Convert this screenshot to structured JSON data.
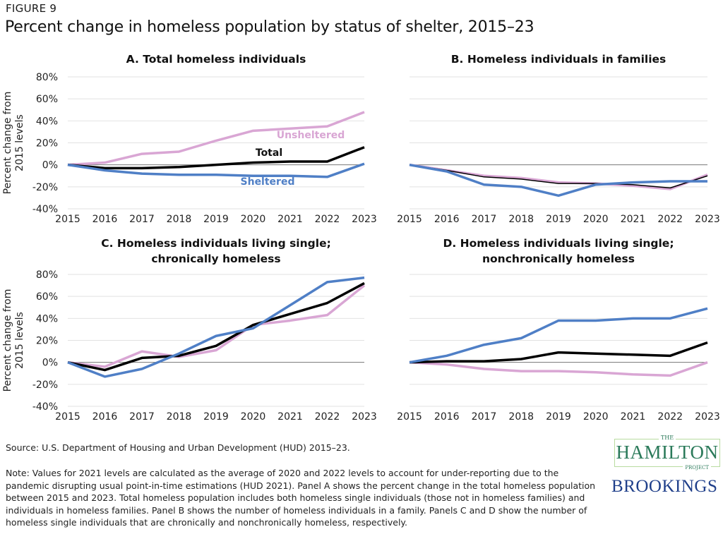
{
  "figure_label": "FIGURE 9",
  "title": "Percent change in homeless population by status of shelter, 2015–23",
  "colors": {
    "Total": "#000000",
    "Sheltered": "#4f7fc6",
    "Unsheltered": "#d9a6d4"
  },
  "chart_data": [
    {
      "type": "line",
      "title": "A. Total homeless individuals",
      "ylabel": "Percent change from 2015 levels",
      "x": [
        "2015",
        "2016",
        "2017",
        "2018",
        "2019",
        "2020",
        "2021",
        "2022",
        "2023"
      ],
      "yticks": [
        "80%",
        "60%",
        "40%",
        "20%",
        "0%",
        "-20%",
        "-40%"
      ],
      "ylim": [
        -40,
        80
      ],
      "series": [
        {
          "name": "Unsheltered",
          "values": [
            0,
            2,
            10,
            12,
            22,
            31,
            33,
            35,
            48
          ]
        },
        {
          "name": "Total",
          "values": [
            0,
            -3,
            -3,
            -2,
            0,
            2,
            3,
            3,
            16
          ]
        },
        {
          "name": "Sheltered",
          "values": [
            0,
            -5,
            -8,
            -9,
            -9,
            -10,
            -10,
            -11,
            1
          ]
        }
      ]
    },
    {
      "type": "line",
      "title": "B. Homeless individuals in families",
      "x": [
        "2015",
        "2016",
        "2017",
        "2018",
        "2019",
        "2020",
        "2021",
        "2022",
        "2023"
      ],
      "ylim": [
        -40,
        80
      ],
      "series": [
        {
          "key": "Unsheltered",
          "values": [
            0,
            -5,
            -10,
            -12,
            -16,
            -17,
            -19,
            -22,
            -9
          ]
        },
        {
          "key": "Total",
          "values": [
            0,
            -5,
            -11,
            -13,
            -17,
            -17,
            -18,
            -21,
            -10
          ]
        },
        {
          "key": "Sheltered",
          "values": [
            0,
            -6,
            -18,
            -20,
            -28,
            -18,
            -16,
            -15,
            -15
          ]
        }
      ]
    },
    {
      "type": "line",
      "title": "C. Homeless individuals living single; chronically homeless",
      "ylabel": "Percent change from 2015 levels",
      "x": [
        "2015",
        "2016",
        "2017",
        "2018",
        "2019",
        "2020",
        "2021",
        "2022",
        "2023"
      ],
      "yticks": [
        "80%",
        "60%",
        "40%",
        "20%",
        "0%",
        "-20%",
        "-40%"
      ],
      "ylim": [
        -40,
        80
      ],
      "series": [
        {
          "key": "Unsheltered",
          "values": [
            0,
            -4,
            10,
            5,
            11,
            34,
            38,
            43,
            70
          ]
        },
        {
          "key": "Total",
          "values": [
            0,
            -7,
            4,
            6,
            15,
            34,
            44,
            54,
            72
          ]
        },
        {
          "key": "Sheltered",
          "values": [
            0,
            -13,
            -6,
            8,
            24,
            31,
            52,
            73,
            77
          ]
        }
      ]
    },
    {
      "type": "line",
      "title": "D. Homeless individuals living single; nonchronically homeless",
      "x": [
        "2015",
        "2016",
        "2017",
        "2018",
        "2019",
        "2020",
        "2021",
        "2022",
        "2023"
      ],
      "ylim": [
        -40,
        80
      ],
      "series": [
        {
          "key": "Unsheltered",
          "values": [
            0,
            -2,
            -6,
            -8,
            -8,
            -9,
            -11,
            -12,
            0
          ]
        },
        {
          "key": "Total",
          "values": [
            0,
            1,
            1,
            3,
            9,
            8,
            7,
            6,
            18
          ]
        },
        {
          "key": "Sheltered",
          "values": [
            0,
            6,
            16,
            22,
            38,
            38,
            40,
            40,
            49
          ]
        }
      ]
    }
  ],
  "source": "Source: U.S. Department of Housing and Urban Development (HUD) 2015–23.",
  "note": "Note: Values for 2021 levels are calculated as the average of 2020 and 2022 levels to account for under-reporting due to the pandemic disrupting usual point-in-time estimations (HUD 2021). Panel A shows the percent change in the total homeless population between 2015 and 2023. Total homeless population includes both homeless single individuals (those not in homeless families) and individuals in homeless families. Panel B shows the number of homeless individuals in a family. Panels C and D show the number of homeless single individuals that are chronically and nonchronically homeless, respectively.",
  "logos": {
    "hamilton_the": "THE",
    "hamilton": "HAMILTON",
    "hamilton_project": "PROJECT",
    "brookings": "BROOKINGS"
  }
}
